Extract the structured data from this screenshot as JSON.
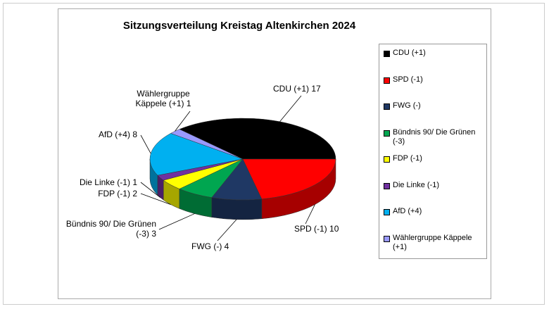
{
  "chart_data": {
    "type": "pie3d",
    "title": "Sitzungsverteilung Kreistag Altenkirchen 2024",
    "categories": [
      "CDU (+1)",
      "SPD (-1)",
      "FWG (-)",
      "Bündnis 90/ Die Grünen (-3)",
      "FDP (-1)",
      "Die Linke (-1)",
      "AfD (+4)",
      "Wählergruppe Käppele (+1)"
    ],
    "values": [
      17,
      10,
      4,
      3,
      2,
      1,
      8,
      1
    ],
    "colors": [
      "#000000",
      "#ff0000",
      "#1f3864",
      "#00a650",
      "#ffff00",
      "#7030a0",
      "#00b0f0",
      "#9999ff"
    ],
    "legend": "right"
  }
}
